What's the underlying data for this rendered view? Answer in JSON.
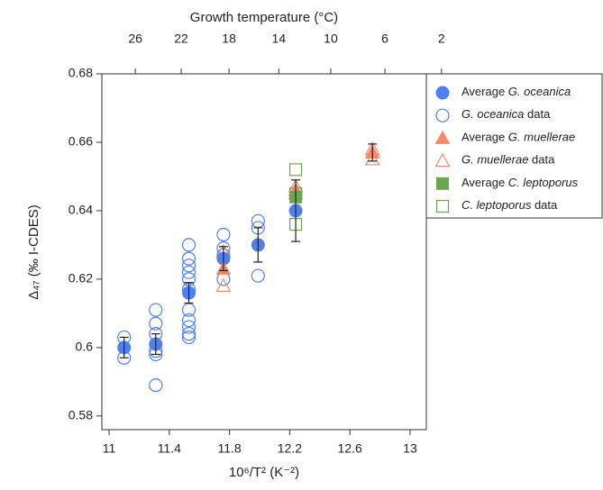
{
  "chart_data": {
    "type": "scatter",
    "title_top": "Growth temperature (°C)",
    "x_label": "10⁶/T² (K⁻²)",
    "y_label": "Δ₄₇ (‰ I-CDES)",
    "xlim": [
      10.952,
      13.108
    ],
    "xticks": [
      11,
      11.4,
      11.8,
      12.2,
      12.6,
      13
    ],
    "ylim": [
      0.576,
      0.68
    ],
    "yticks": [
      0.58,
      0.6,
      0.62,
      0.64,
      0.66,
      0.68
    ],
    "x2ticks": [
      26,
      22,
      18,
      14,
      10,
      6,
      2
    ],
    "series": [
      {
        "name": "Average G. oceanica",
        "color": "#4f7ff0",
        "marker": "circle",
        "filled": true,
        "x": [
          11.1,
          11.31,
          11.53,
          11.76,
          11.99,
          12.24
        ],
        "values": [
          0.6,
          0.601,
          0.616,
          0.626,
          0.63,
          0.64
        ],
        "errors": [
          0.003,
          0.003,
          0.003,
          0.0035,
          0.005,
          0.009
        ]
      },
      {
        "name": "G. oceanica data",
        "color": "#4f7ff0",
        "marker": "circle",
        "filled": false,
        "x": [
          11.1,
          11.1,
          11.31,
          11.31,
          11.31,
          11.31,
          11.31,
          11.31,
          11.53,
          11.53,
          11.53,
          11.53,
          11.53,
          11.53,
          11.53,
          11.53,
          11.53,
          11.53,
          11.53,
          11.76,
          11.76,
          11.76,
          11.76,
          11.99,
          11.99,
          11.99
        ],
        "values": [
          0.603,
          0.597,
          0.611,
          0.607,
          0.604,
          0.599,
          0.598,
          0.589,
          0.63,
          0.626,
          0.624,
          0.622,
          0.62,
          0.617,
          0.611,
          0.608,
          0.606,
          0.604,
          0.603,
          0.633,
          0.629,
          0.627,
          0.62,
          0.637,
          0.635,
          0.621
        ]
      },
      {
        "name": "Average G. muellerae",
        "color": "#f4876b",
        "marker": "triangle",
        "filled": true,
        "x": [
          11.76,
          12.24,
          12.75
        ],
        "values": [
          0.623,
          0.646,
          0.657
        ],
        "errors": [
          null,
          null,
          0.0025
        ]
      },
      {
        "name": "G. muellerae data",
        "color": "#f4876b",
        "marker": "triangle",
        "filled": false,
        "x": [
          11.76,
          11.76,
          12.24,
          12.24,
          12.75,
          12.75
        ],
        "values": [
          0.628,
          0.618,
          0.647,
          0.645,
          0.658,
          0.655
        ]
      },
      {
        "name": "Average C. leptoporus",
        "color": "#6aa84f",
        "marker": "square",
        "filled": true,
        "x": [
          12.24
        ],
        "values": [
          0.644
        ]
      },
      {
        "name": "C. leptoporus data",
        "color": "#6aa84f",
        "marker": "square",
        "filled": false,
        "x": [
          12.24,
          12.24,
          12.24
        ],
        "values": [
          0.652,
          0.645,
          0.636
        ]
      }
    ]
  }
}
